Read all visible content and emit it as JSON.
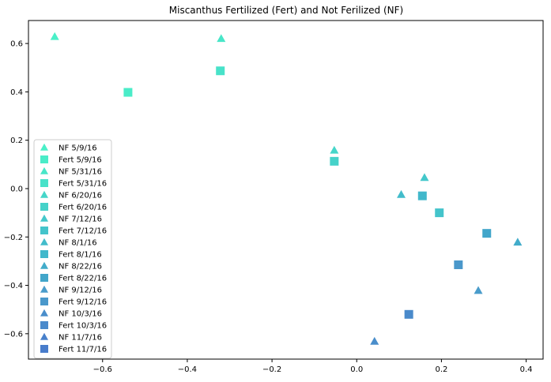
{
  "chart_data": {
    "type": "scatter",
    "title": "Miscanthus Fertilized (Fert) and Not Ferilized (NF)",
    "xlabel": "",
    "ylabel": "",
    "xlim": [
      -0.775,
      0.44
    ],
    "ylim": [
      -0.705,
      0.695
    ],
    "xticks": [
      -0.6,
      -0.4,
      -0.2,
      0.0,
      0.2,
      0.4
    ],
    "xtick_labels": [
      "−0.6",
      "−0.4",
      "−0.2",
      "0.0",
      "0.2",
      "0.4"
    ],
    "yticks": [
      0.6,
      0.4,
      0.2,
      0.0,
      -0.2,
      -0.4,
      -0.6
    ],
    "ytick_labels": [
      "0.6",
      "0.4",
      "0.2",
      "0.0",
      "−0.2",
      "−0.4",
      "−0.6"
    ],
    "grid": false,
    "legend_position": "lower-left",
    "series": [
      {
        "name": "NF 5/9/16",
        "marker": "triangle",
        "color": "#4af0c8",
        "x": -0.713,
        "y": 0.628
      },
      {
        "name": "Fert 5/9/16",
        "marker": "square",
        "color": "#4aecc8",
        "x": -0.54,
        "y": 0.398
      },
      {
        "name": "NF 5/31/16",
        "marker": "triangle",
        "color": "#48e6c8",
        "x": -0.32,
        "y": 0.62
      },
      {
        "name": "Fert 5/31/16",
        "marker": "square",
        "color": "#48e2c9",
        "x": -0.322,
        "y": 0.487
      },
      {
        "name": "NF 6/20/16",
        "marker": "triangle",
        "color": "#46d6c9",
        "x": -0.053,
        "y": 0.158
      },
      {
        "name": "Fert 6/20/16",
        "marker": "square",
        "color": "#46d2c9",
        "x": -0.053,
        "y": 0.113
      },
      {
        "name": "NF 7/12/16",
        "marker": "triangle",
        "color": "#44c8cb",
        "x": 0.16,
        "y": 0.045
      },
      {
        "name": "Fert 7/12/16",
        "marker": "square",
        "color": "#44c4cb",
        "x": 0.195,
        "y": -0.1
      },
      {
        "name": "NF 8/1/16",
        "marker": "triangle",
        "color": "#42bccb",
        "x": 0.105,
        "y": -0.025
      },
      {
        "name": "Fert 8/1/16",
        "marker": "square",
        "color": "#42b8cb",
        "x": 0.155,
        "y": -0.03
      },
      {
        "name": "NF 8/22/16",
        "marker": "triangle",
        "color": "#42acca",
        "x": 0.38,
        "y": -0.222
      },
      {
        "name": "Fert 8/22/16",
        "marker": "square",
        "color": "#42a6ca",
        "x": 0.307,
        "y": -0.185
      },
      {
        "name": "NF 9/12/16",
        "marker": "triangle",
        "color": "#4a9ccb",
        "x": 0.287,
        "y": -0.422
      },
      {
        "name": "Fert 9/12/16",
        "marker": "square",
        "color": "#4a98cb",
        "x": 0.24,
        "y": -0.315
      },
      {
        "name": "NF 10/3/16",
        "marker": "triangle",
        "color": "#4a8ecb",
        "x": 0.042,
        "y": -0.632
      },
      {
        "name": "Fert 10/3/16",
        "marker": "square",
        "color": "#4a8acb",
        "x": 0.123,
        "y": -0.52
      },
      {
        "name": "NF 11/7/16",
        "marker": "triangle",
        "color": "#4880cb",
        "x": null,
        "y": null
      },
      {
        "name": "Fert 11/7/16",
        "marker": "square",
        "color": "#487ccb",
        "x": null,
        "y": null
      }
    ]
  }
}
